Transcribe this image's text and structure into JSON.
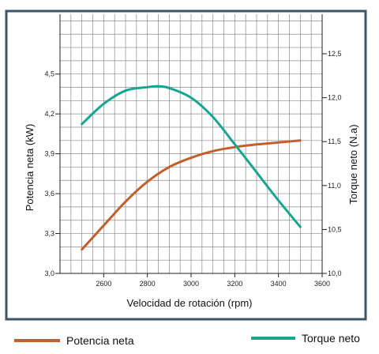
{
  "chart_data": {
    "type": "line",
    "x_axis": {
      "label": "Velocidad de rotación (rpm)",
      "min": 2400,
      "max": 3600,
      "tick_values": [
        2600,
        2800,
        3000,
        3200,
        3400,
        3600
      ],
      "tick_labels": [
        "2600",
        "2800",
        "3000",
        "3200",
        "3400",
        "3600"
      ]
    },
    "y_left": {
      "label": "Potencia neta (kW)",
      "min": 3.0,
      "max": 4.95,
      "tick_values": [
        3.0,
        3.3,
        3.6,
        3.9,
        4.2,
        4.5
      ],
      "tick_labels": [
        "3,0",
        "3,3",
        "3,6",
        "3,9",
        "4,2",
        "4,5"
      ]
    },
    "y_right": {
      "label": "Torque neto (N.a)",
      "min": 10.0,
      "max": 12.95,
      "tick_values": [
        10.0,
        10.5,
        11.0,
        11.5,
        12.0,
        12.5
      ],
      "tick_labels": [
        "10,0",
        "10,5",
        "11,0",
        "11,5",
        "12,0",
        "12,5"
      ]
    },
    "grid": true,
    "series": [
      {
        "name": "Potencia neta",
        "axis": "left",
        "color": "#c0602a",
        "x": [
          2500,
          2600,
          2700,
          2800,
          2900,
          3000,
          3100,
          3200,
          3300,
          3400,
          3500
        ],
        "y": [
          3.18,
          3.36,
          3.54,
          3.69,
          3.8,
          3.87,
          3.92,
          3.95,
          3.97,
          3.985,
          4.0
        ]
      },
      {
        "name": "Torque neto",
        "axis": "right",
        "color": "#1aa592",
        "x": [
          2500,
          2600,
          2700,
          2800,
          2850,
          2900,
          3000,
          3100,
          3200,
          3300,
          3400,
          3500
        ],
        "y": [
          11.7,
          11.93,
          12.08,
          12.12,
          12.13,
          12.11,
          12.0,
          11.78,
          11.47,
          11.15,
          10.83,
          10.53
        ]
      }
    ],
    "legend_position": "bottom"
  }
}
